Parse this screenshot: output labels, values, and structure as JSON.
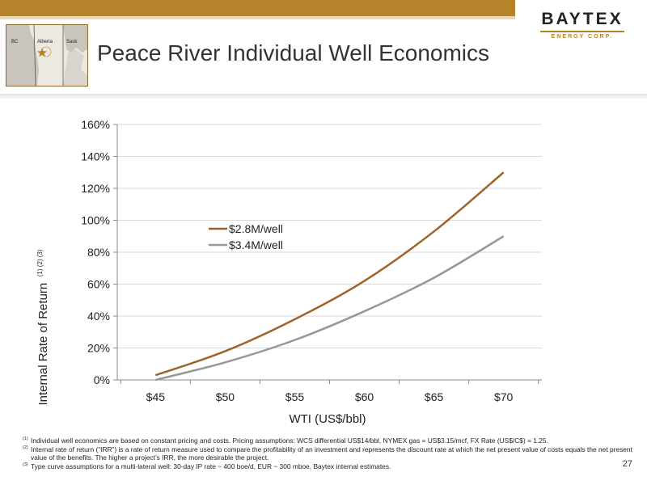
{
  "header": {
    "title": "Peace River Individual Well Economics",
    "logo_main": "BAYTEX",
    "logo_sub": "ENERGY CORP.",
    "map_labels": {
      "bc": "BC",
      "alberta": "Alberta",
      "sask": "Sask"
    }
  },
  "chart_data": {
    "type": "line",
    "xlabel": "WTI (US$/bbl)",
    "ylabel": "Internal Rate of Return",
    "ylabel_sup": "(1) (2) (3)",
    "x": [
      45,
      50,
      55,
      60,
      65,
      70
    ],
    "x_tick_labels": [
      "$45",
      "$50",
      "$55",
      "$60",
      "$65",
      "$70"
    ],
    "ylim": [
      0,
      160
    ],
    "y_ticks": [
      0,
      20,
      40,
      60,
      80,
      100,
      120,
      140,
      160
    ],
    "y_tick_labels": [
      "0%",
      "20%",
      "40%",
      "60%",
      "80%",
      "100%",
      "120%",
      "140%",
      "160%"
    ],
    "grid": true,
    "legend_position": "center-left",
    "series": [
      {
        "name": "$2.8M/well",
        "color": "#a0622a",
        "values": [
          3,
          18,
          38,
          62,
          93,
          130
        ]
      },
      {
        "name": "$3.4M/well",
        "color": "#979797",
        "values": [
          0,
          11,
          25,
          43,
          64,
          90
        ]
      }
    ]
  },
  "footnotes": [
    {
      "num": "(1)",
      "text": "Individual well economics are based on constant pricing and costs. Pricing assumptions:  WCS differential US$14/bbl, NYMEX gas = US$3.15/mcf, FX Rate (US$/C$) = 1.25."
    },
    {
      "num": "(2)",
      "text": "Internal rate of return (“IRR”) is a rate of return measure used to compare the profitability of an investment and represents the discount rate at which the net present value of costs equals the net present value of the benefits. The higher a project’s IRR, the more desirable the project."
    },
    {
      "num": "(3)",
      "text": "Type curve assumptions for a multi-lateral well: 30-day IP rate ~ 400 boe/d, EUR ~ 300 mboe. Baytex internal estimates."
    }
  ],
  "page_number": "27"
}
